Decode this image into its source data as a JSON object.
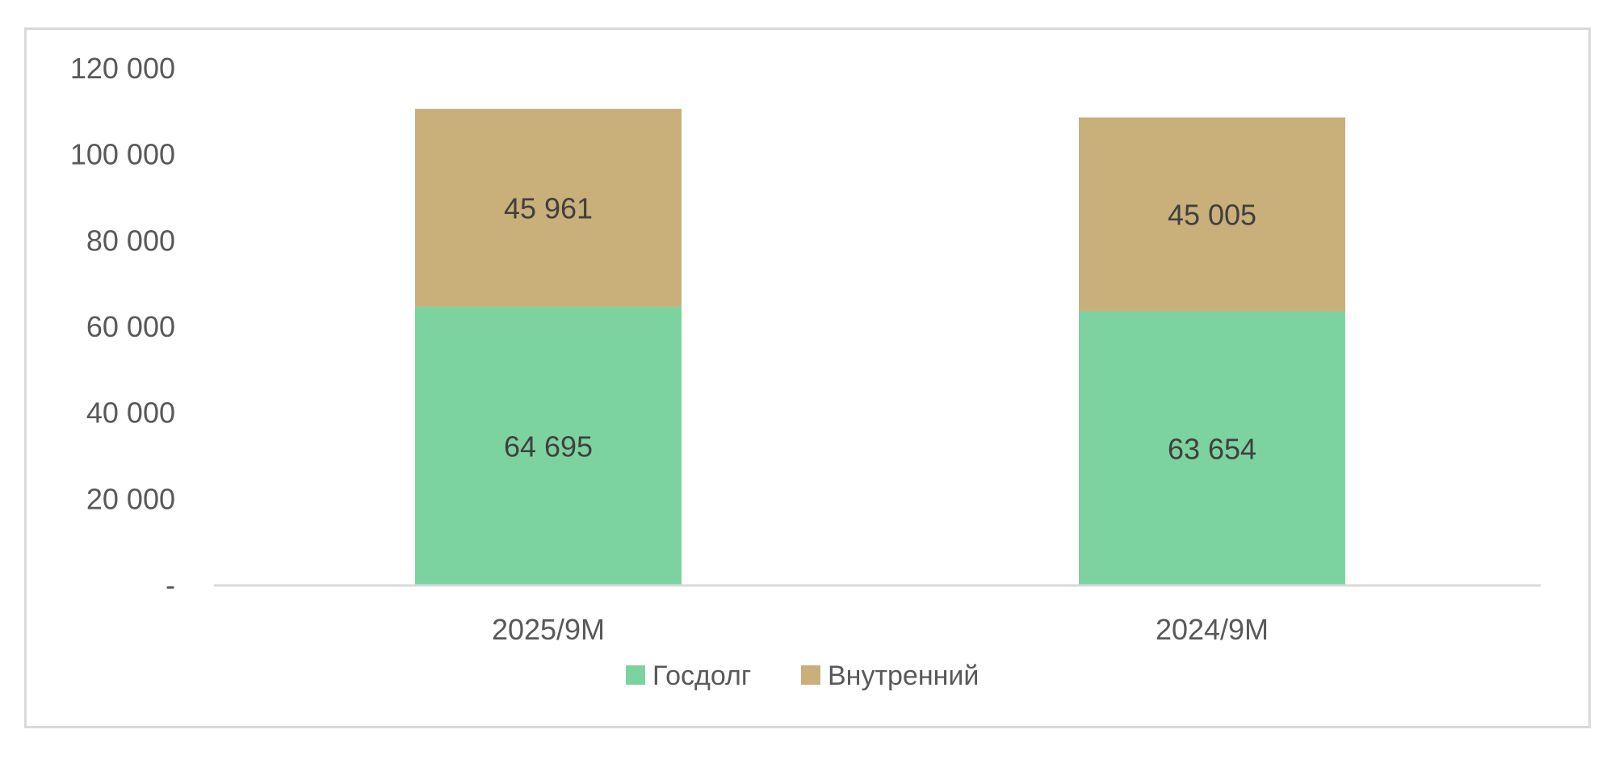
{
  "chart_data": {
    "type": "bar",
    "stacked": true,
    "categories": [
      "2025/9M",
      "2024/9M"
    ],
    "series": [
      {
        "name": "Госдолг",
        "values": [
          64695,
          63654
        ],
        "labels": [
          "64 695",
          "63 654"
        ],
        "color": "#7dd3a0"
      },
      {
        "name": "Внутренний",
        "values": [
          45961,
          45005
        ],
        "labels": [
          "45 961",
          "45 005"
        ],
        "color": "#c9b07a"
      }
    ],
    "yticks": [
      {
        "value": 0,
        "label": "-"
      },
      {
        "value": 20000,
        "label": "20 000"
      },
      {
        "value": 40000,
        "label": "40 000"
      },
      {
        "value": 60000,
        "label": "60 000"
      },
      {
        "value": 80000,
        "label": "80 000"
      },
      {
        "value": 100000,
        "label": "100 000"
      },
      {
        "value": 120000,
        "label": "120 000"
      }
    ],
    "ylim": [
      0,
      120000
    ],
    "grid": false,
    "legend_position": "bottom",
    "title": "",
    "xlabel": "",
    "ylabel": "",
    "colors": {
      "axis": "#d9d9d9",
      "frame": "#d9d9d9"
    }
  }
}
